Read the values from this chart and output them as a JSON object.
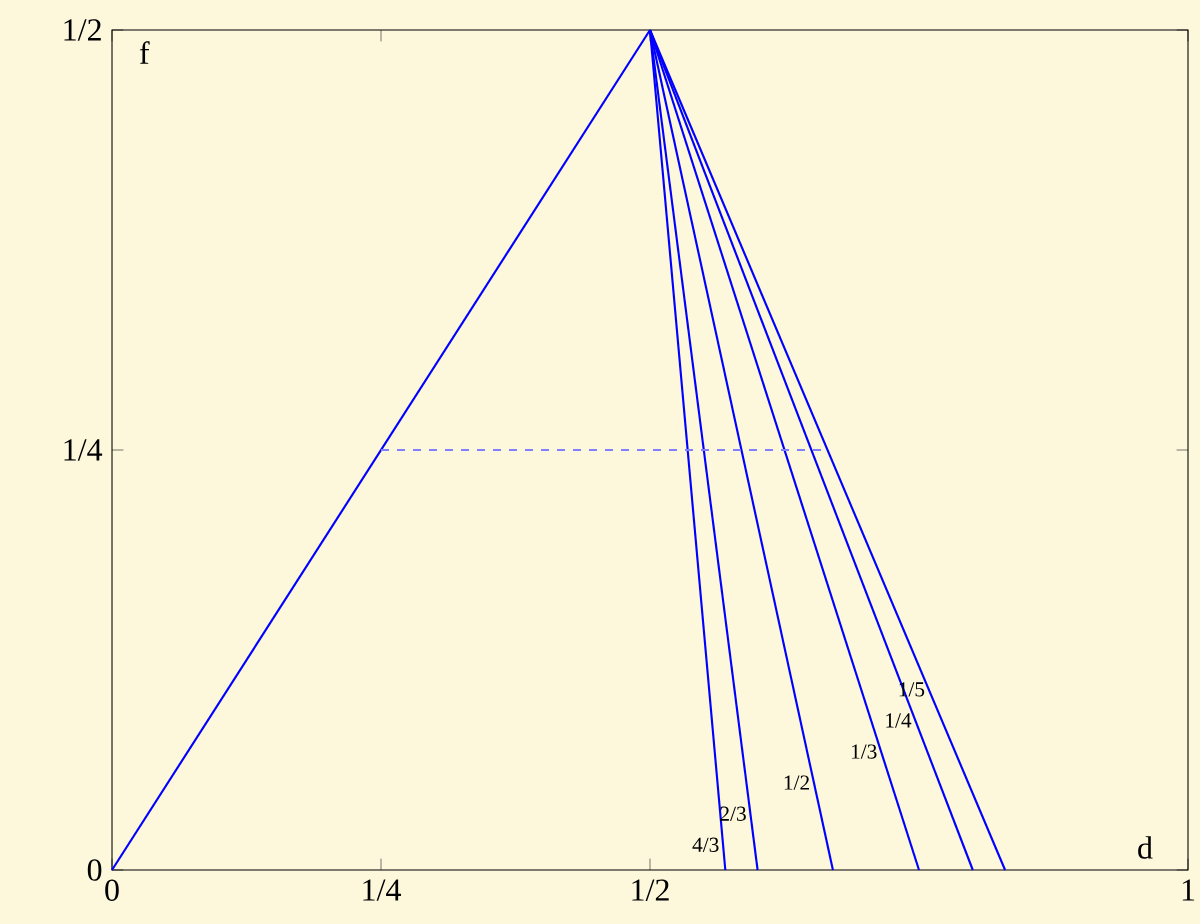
{
  "chart_data": {
    "type": "line",
    "xlabel": "d",
    "ylabel": "f",
    "xlim": [
      0,
      1
    ],
    "ylim": [
      0,
      0.5
    ],
    "xticks": [
      {
        "value": 0,
        "label": "0"
      },
      {
        "value": 0.25,
        "label": "1/4"
      },
      {
        "value": 0.5,
        "label": "1/2"
      },
      {
        "value": 1,
        "label": "1"
      }
    ],
    "yticks": [
      {
        "value": 0,
        "label": "0"
      },
      {
        "value": 0.25,
        "label": "1/4"
      },
      {
        "value": 0.5,
        "label": "1/2"
      }
    ],
    "series": [
      {
        "color": "#0000ff",
        "x": [
          0,
          0.5
        ],
        "values": [
          0,
          0.5
        ]
      },
      {
        "name": "4/3",
        "color": "#0000ff",
        "x": [
          0.5,
          0.57
        ],
        "values": [
          0.5,
          0
        ]
      },
      {
        "name": "2/3",
        "color": "#0000ff",
        "x": [
          0.5,
          0.6
        ],
        "values": [
          0.5,
          0
        ]
      },
      {
        "name": "1/2",
        "color": "#0000ff",
        "x": [
          0.5,
          0.67
        ],
        "values": [
          0.5,
          0
        ]
      },
      {
        "name": "1/3",
        "color": "#0000ff",
        "x": [
          0.5,
          0.75
        ],
        "values": [
          0.5,
          0
        ]
      },
      {
        "name": "1/4",
        "color": "#0000ff",
        "x": [
          0.5,
          0.8
        ],
        "values": [
          0.5,
          0
        ]
      },
      {
        "name": "1/5",
        "color": "#0000ff",
        "x": [
          0.5,
          0.83
        ],
        "values": [
          0.5,
          0
        ]
      },
      {
        "color": "#8080ff",
        "line_style": "dashed",
        "x": [
          0.25,
          0.66
        ],
        "values": [
          0.25,
          0.25
        ]
      }
    ]
  }
}
